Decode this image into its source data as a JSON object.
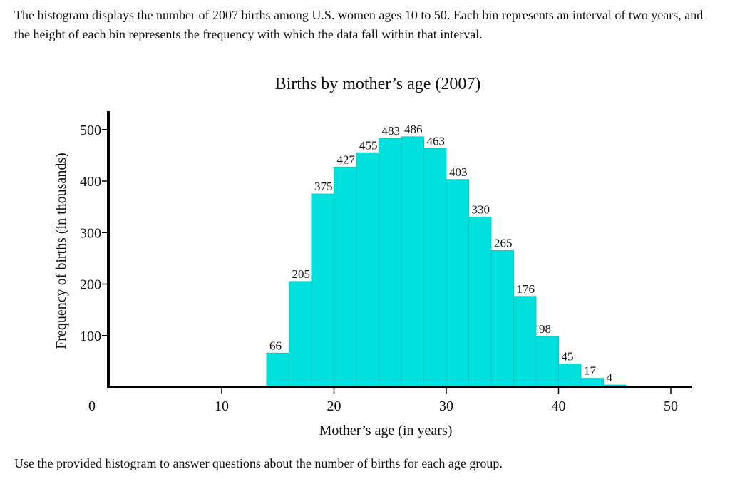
{
  "intro_text": "The histogram displays the number of 2007 births among U.S. women ages 10 to 50. Each bin represents an interval of two years, and the height of each bin represents the frequency with which the data fall within that interval.",
  "outro_text": "Use the provided histogram to answer questions about the number of births for each age group.",
  "colors": {
    "bar_fill": "#00e0dc",
    "bar_stroke": "#16c4c0",
    "axis": "#000000"
  },
  "chart_data": {
    "type": "bar",
    "title": "Births by mother’s age (2007)",
    "xlabel": "Mother’s age (in years)",
    "ylabel": "Frequency of births (in thousands)",
    "xlim": [
      0,
      50
    ],
    "ylim": [
      0,
      500
    ],
    "bin_width": 2,
    "x_ticks": [
      10,
      20,
      30,
      40,
      50
    ],
    "x_tick_labels": [
      "10",
      "20",
      "30",
      "40",
      "50"
    ],
    "y_ticks": [
      100,
      200,
      300,
      400,
      500
    ],
    "y_tick_labels": [
      "100",
      "200",
      "300",
      "400",
      "500"
    ],
    "origin_label": "0",
    "bins": [
      {
        "start": 14,
        "end": 16,
        "value": 66,
        "label": "66"
      },
      {
        "start": 16,
        "end": 18,
        "value": 205,
        "label": "205"
      },
      {
        "start": 18,
        "end": 20,
        "value": 375,
        "label": "375"
      },
      {
        "start": 20,
        "end": 22,
        "value": 427,
        "label": "427"
      },
      {
        "start": 22,
        "end": 24,
        "value": 455,
        "label": "455"
      },
      {
        "start": 24,
        "end": 26,
        "value": 483,
        "label": "483"
      },
      {
        "start": 26,
        "end": 28,
        "value": 486,
        "label": "486"
      },
      {
        "start": 28,
        "end": 30,
        "value": 463,
        "label": "463"
      },
      {
        "start": 30,
        "end": 32,
        "value": 403,
        "label": "403"
      },
      {
        "start": 32,
        "end": 34,
        "value": 330,
        "label": "330"
      },
      {
        "start": 34,
        "end": 36,
        "value": 265,
        "label": "265"
      },
      {
        "start": 36,
        "end": 38,
        "value": 176,
        "label": "176"
      },
      {
        "start": 38,
        "end": 40,
        "value": 98,
        "label": "98"
      },
      {
        "start": 40,
        "end": 42,
        "value": 45,
        "label": "45"
      },
      {
        "start": 42,
        "end": 44,
        "value": 17,
        "label": "17"
      },
      {
        "start": 44,
        "end": 46,
        "value": 4,
        "label": "4"
      }
    ],
    "grid": false,
    "legend": "none"
  }
}
